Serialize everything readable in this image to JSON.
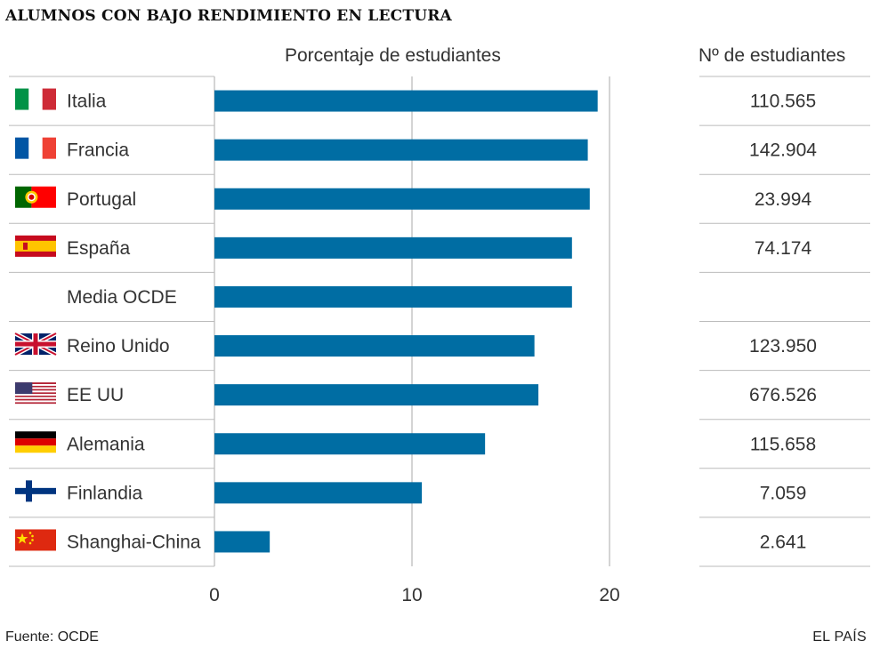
{
  "header": {
    "title": "ALUMNOS CON BAJO RENDIMIENTO EN LECTURA",
    "subtitle": "Porcentaje de estudiantes",
    "count_header": "Nº de estudiantes"
  },
  "footer": {
    "source": "Fuente: OCDE",
    "brand": "EL PAÍS"
  },
  "colors": {
    "bar": "#006da3",
    "grid": "#aaaaaa",
    "rule": "#bbbbbb"
  },
  "chart_data": {
    "type": "bar",
    "orientation": "horizontal",
    "categories": [
      "Italia",
      "Francia",
      "Portugal",
      "España",
      "Media OCDE",
      "Reino Unido",
      "EE UU",
      "Alemania",
      "Finlandia",
      "Shanghai-China"
    ],
    "flags": [
      "italy-flag-icon",
      "france-flag-icon",
      "portugal-flag-icon",
      "spain-flag-icon",
      "",
      "uk-flag-icon",
      "usa-flag-icon",
      "germany-flag-icon",
      "finland-flag-icon",
      "china-flag-icon"
    ],
    "values": [
      19.4,
      18.9,
      19.0,
      18.1,
      18.1,
      16.2,
      16.4,
      13.7,
      10.5,
      2.8
    ],
    "counts": [
      "110.565",
      "142.904",
      "23.994",
      "74.174",
      "",
      "123.950",
      "676.526",
      "115.658",
      "7.059",
      "2.641"
    ],
    "xlim": [
      0,
      20
    ],
    "xticks": [
      0,
      10,
      20
    ],
    "grid": true
  }
}
